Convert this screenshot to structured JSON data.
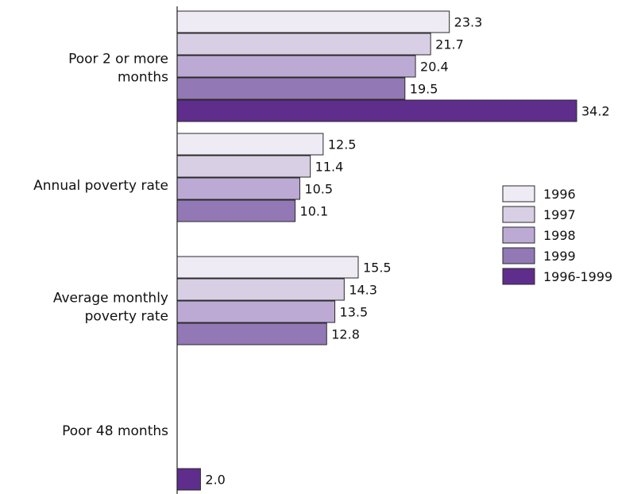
{
  "chart_data": {
    "type": "bar",
    "orientation": "horizontal",
    "categories": [
      [
        "Poor 2 or more",
        "months"
      ],
      [
        "Annual poverty rate"
      ],
      [
        "Average monthly",
        "poverty rate"
      ],
      [
        "Poor 48 months"
      ]
    ],
    "series": [
      {
        "name": "1996",
        "color": "#efebf5",
        "values": [
          23.3,
          12.5,
          15.5,
          null
        ]
      },
      {
        "name": "1997",
        "color": "#d8cfe5",
        "values": [
          21.7,
          11.4,
          14.3,
          null
        ]
      },
      {
        "name": "1998",
        "color": "#bcaad5",
        "values": [
          20.4,
          10.5,
          13.5,
          null
        ]
      },
      {
        "name": "1999",
        "color": "#9278b4",
        "values": [
          19.5,
          10.1,
          12.8,
          null
        ]
      },
      {
        "name": "1996-1999",
        "color": "#5f2d8c",
        "values": [
          34.2,
          null,
          null,
          2.0
        ]
      }
    ],
    "value_labels": {
      "1996": [
        "23.3",
        "12.5",
        "15.5",
        null
      ],
      "1997": [
        "21.7",
        "11.4",
        "14.3",
        null
      ],
      "1998": [
        "20.4",
        "10.5",
        "13.5",
        null
      ],
      "1999": [
        "19.5",
        "10.1",
        "12.8",
        null
      ],
      "1996-1999": [
        "34.2",
        null,
        null,
        "2.0"
      ]
    },
    "xlim": [
      0,
      34.2
    ],
    "grid": false,
    "legend": "center-right"
  }
}
